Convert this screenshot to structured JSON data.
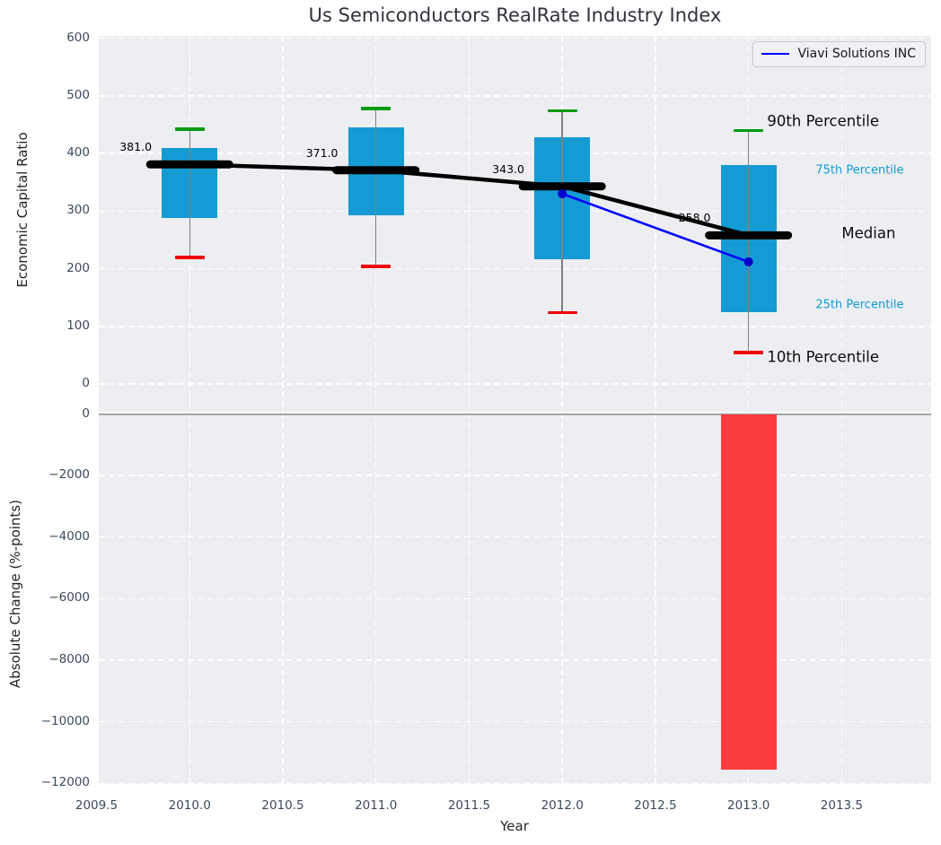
{
  "title": "Us Semiconductors RealRate Industry Index",
  "legend": {
    "label": "Viavi Solutions INC",
    "position": "top-right"
  },
  "colors": {
    "background": "#ffffff",
    "plot_bg": "#eceef1",
    "grid": "#ffffff",
    "box_fill": "#149bd3",
    "accent_text": "#149bd3",
    "median_line": "#000000",
    "company_line": "#0000ff",
    "company_dot": "#0000cc",
    "bar_negative": "#fa3c3c",
    "cap_high": "#009a0f",
    "cap_low": "#ee0000",
    "whisker": "#808080",
    "tick_label": "#3a4a5e",
    "zero_line": "#a6a6a6",
    "legend_bg": "#f0f1f5",
    "legend_border": "#c9c9d4"
  },
  "chart_data": [
    {
      "type": "boxplot",
      "title": "Us Semiconductors RealRate Industry Index",
      "xlabel": "Year",
      "ylabel": "Economic Capital Ratio",
      "categories": [
        2010,
        2011,
        2012,
        2013
      ],
      "series": [
        {
          "name": "90th Percentile",
          "values": [
            442,
            478,
            474,
            440
          ]
        },
        {
          "name": "75th Percentile",
          "values": [
            410,
            446,
            428,
            380
          ]
        },
        {
          "name": "Median",
          "values": [
            381,
            371,
            343,
            258
          ]
        },
        {
          "name": "25th Percentile",
          "values": [
            288,
            292,
            216,
            124
          ]
        },
        {
          "name": "10th Percentile",
          "values": [
            220,
            204,
            124,
            55
          ]
        }
      ],
      "median_labels": [
        "381.0",
        "371.0",
        "343.0",
        "258.0"
      ],
      "company_series": {
        "name": "Viavi Solutions INC",
        "x": [
          2012,
          2013
        ],
        "y": [
          330,
          212
        ]
      },
      "annotations": [
        {
          "text": "90th Percentile",
          "x": 2013.1,
          "y": 456,
          "style": "dark"
        },
        {
          "text": "75th Percentile",
          "x": 2013.36,
          "y": 370,
          "style": "accent"
        },
        {
          "text": "Median",
          "x": 2013.5,
          "y": 262,
          "style": "dark"
        },
        {
          "text": "25th Percentile",
          "x": 2013.36,
          "y": 137,
          "style": "accent"
        },
        {
          "text": "10th Percentile",
          "x": 2013.1,
          "y": 47,
          "style": "dark"
        }
      ],
      "grid": "dashed-white",
      "legend_position": "upper right",
      "xlim": [
        2009.512,
        2013.98
      ],
      "ylim": [
        -48,
        604
      ],
      "xticks": [
        2009.5,
        2010.0,
        2010.5,
        2011.0,
        2011.5,
        2012.0,
        2012.5,
        2013.0,
        2013.5
      ],
      "xtick_labels": [
        "2009.5",
        "2010.0",
        "2010.5",
        "2011.0",
        "2011.5",
        "2012.0",
        "2012.5",
        "2013.0",
        "2013.5"
      ],
      "yticks": [
        0,
        100,
        200,
        300,
        400,
        500,
        600
      ],
      "ytick_labels": [
        "0",
        "100",
        "200",
        "300",
        "400",
        "500",
        "600"
      ]
    },
    {
      "type": "bar",
      "xlabel": "Year",
      "ylabel": "Absolute Change (%-points)",
      "categories": [
        2013
      ],
      "values": [
        -11550
      ],
      "bar_width_years": 0.3,
      "grid": "dashed-white",
      "xlim": [
        2009.512,
        2013.98
      ],
      "ylim": [
        -12020,
        44
      ],
      "xticks": [
        2009.5,
        2010.0,
        2010.5,
        2011.0,
        2011.5,
        2012.0,
        2012.5,
        2013.0,
        2013.5
      ],
      "yticks": [
        0,
        -2000,
        -4000,
        -6000,
        -8000,
        -10000,
        -12000
      ],
      "ytick_labels": [
        "0",
        "−2000",
        "−4000",
        "−6000",
        "−8000",
        "−10000",
        "−12000"
      ]
    }
  ]
}
